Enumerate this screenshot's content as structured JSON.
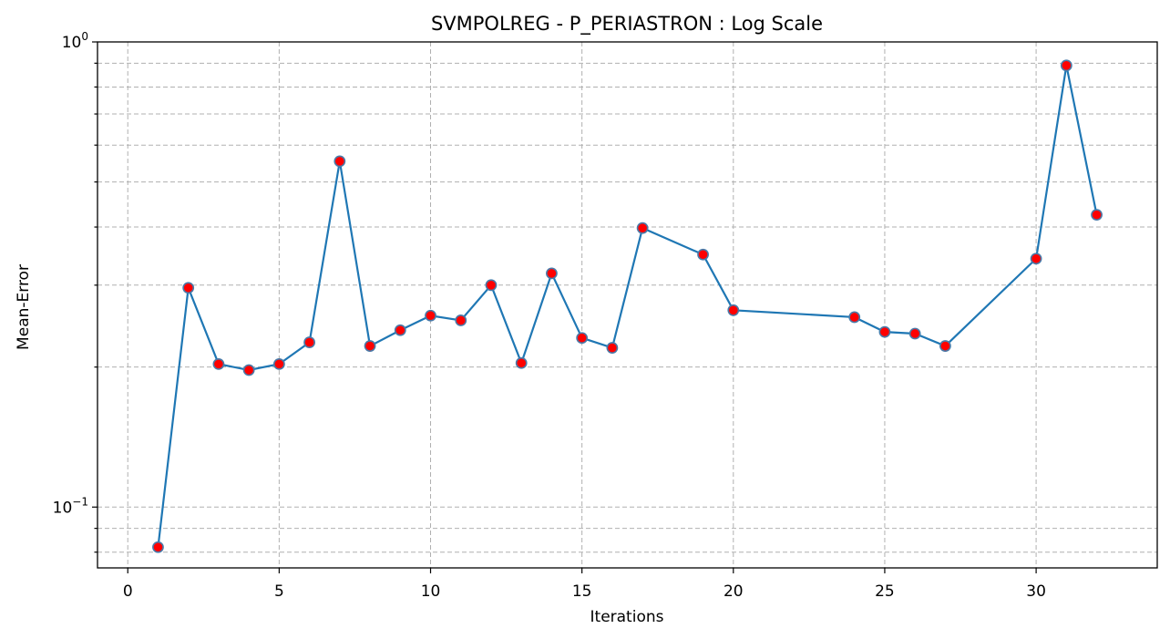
{
  "chart_data": {
    "type": "line",
    "title": "SVMPOLREG - P_PERIASTRON : Log Scale",
    "xlabel": "Iterations",
    "ylabel": "Mean-Error",
    "yscale": "log",
    "xlim": [
      -1,
      34
    ],
    "ylim": [
      0.074,
      1.0
    ],
    "xticks": [
      0,
      5,
      10,
      15,
      20,
      25,
      30
    ],
    "xtick_labels": [
      "0",
      "5",
      "10",
      "15",
      "20",
      "25",
      "30"
    ],
    "yticks_major": [
      0.1,
      1.0
    ],
    "ytick_major_labels": [
      {
        "base": "10",
        "exp": "−1"
      },
      {
        "base": "10",
        "exp": "0"
      }
    ],
    "yticks_minor": [
      0.08,
      0.09,
      0.2,
      0.3,
      0.4,
      0.5,
      0.6,
      0.7,
      0.8,
      0.9
    ],
    "grid": true,
    "line_color": "#1f77b4",
    "marker_face_color": "#ff0000",
    "marker_edge_color": "#4a7aa8",
    "series": [
      {
        "x": [
          1,
          2,
          3,
          4,
          5,
          6,
          7,
          8,
          9,
          10,
          11,
          12,
          13,
          14,
          15,
          16,
          17,
          19,
          20,
          24,
          25,
          26,
          27,
          30,
          31,
          32
        ],
        "y": [
          0.082,
          0.296,
          0.203,
          0.197,
          0.203,
          0.226,
          0.554,
          0.222,
          0.24,
          0.258,
          0.252,
          0.3,
          0.204,
          0.318,
          0.231,
          0.22,
          0.398,
          0.349,
          0.265,
          0.256,
          0.238,
          0.236,
          0.222,
          0.342,
          0.89,
          0.425
        ]
      }
    ]
  }
}
